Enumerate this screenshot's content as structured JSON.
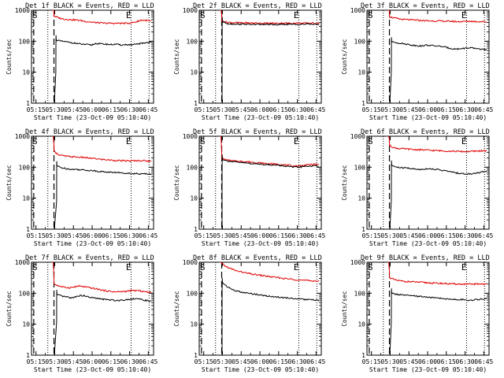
{
  "chart_data": [
    {
      "type": "line",
      "title": "Det 1f BLACK = Events, RED = LLD",
      "xlabel": "Start Time (23-Oct-09 05:10:40)",
      "ylabel": "Counts/sec",
      "yscale": "log",
      "ylim": [
        1,
        1000
      ],
      "xlim": [
        5.19,
        6.82
      ],
      "x_ticks": [
        "05:15",
        "05:30",
        "05:45",
        "06:00",
        "06:15",
        "06:30",
        "06:45"
      ],
      "y_ticks": [
        "1",
        "10",
        "100",
        "1000"
      ],
      "markers": [
        "S",
        "E"
      ],
      "grid": false,
      "black_start": 5.52,
      "black_spike_min": 10,
      "black": [
        110,
        100,
        95,
        90,
        85,
        80,
        78,
        75,
        85,
        82,
        80,
        78,
        80,
        75,
        78,
        75,
        80,
        85,
        90,
        92
      ],
      "red": [
        650,
        560,
        520,
        500,
        490,
        470,
        440,
        420,
        400,
        390,
        380,
        380,
        380,
        380,
        380,
        390,
        420,
        480,
        470,
        440
      ],
      "series": [
        {
          "name": "BLACK",
          "color": "#000000"
        },
        {
          "name": "RED",
          "color": "#e00000"
        }
      ]
    },
    {
      "type": "line",
      "title": "Det 2f BLACK = Events, RED = LLD",
      "xlabel": "Start Time (23-Oct-09 05:10:40)",
      "ylabel": "Counts/sec",
      "yscale": "log",
      "ylim": [
        1,
        1000
      ],
      "xlim": [
        5.19,
        6.82
      ],
      "x_ticks": [
        "05:15",
        "05:30",
        "05:45",
        "06:00",
        "06:15",
        "06:30",
        "06:45"
      ],
      "y_ticks": [
        "1",
        "10",
        "100",
        "1000"
      ],
      "markers": [
        "S",
        "E"
      ],
      "grid": false,
      "black_start": 5.5,
      "black_spike_min": 10,
      "black": [
        430,
        370,
        360,
        355,
        355,
        350,
        345,
        350,
        345,
        350,
        340,
        345,
        350,
        355,
        345,
        350,
        355,
        360,
        350,
        345
      ],
      "red": [
        460,
        410,
        400,
        395,
        390,
        390,
        385,
        385,
        380,
        380,
        380,
        380,
        385,
        380,
        380,
        385,
        380,
        385,
        380,
        380
      ],
      "series": [
        {
          "name": "BLACK",
          "color": "#000000"
        },
        {
          "name": "RED",
          "color": "#e00000"
        }
      ]
    },
    {
      "type": "line",
      "title": "Det 3f BLACK = Events, RED = LLD",
      "xlabel": "Start Time (23-Oct-09 05:10:40)",
      "ylabel": "Counts/sec",
      "yscale": "log",
      "ylim": [
        1,
        1000
      ],
      "xlim": [
        5.19,
        6.82
      ],
      "x_ticks": [
        "05:15",
        "05:30",
        "05:45",
        "06:00",
        "06:15",
        "06:30",
        "06:45"
      ],
      "y_ticks": [
        "1",
        "10",
        "100",
        "1000"
      ],
      "markers": [
        "S",
        "E"
      ],
      "grid": false,
      "black_start": 5.52,
      "black_spike_min": 10,
      "black": [
        95,
        90,
        85,
        80,
        75,
        72,
        70,
        75,
        72,
        70,
        68,
        62,
        58,
        56,
        58,
        60,
        60,
        58,
        55,
        52
      ],
      "red": [
        620,
        560,
        520,
        500,
        490,
        480,
        470,
        460,
        450,
        450,
        450,
        440,
        440,
        430,
        430,
        440,
        440,
        430,
        430,
        420
      ],
      "series": [
        {
          "name": "BLACK",
          "color": "#000000"
        },
        {
          "name": "RED",
          "color": "#e00000"
        }
      ]
    },
    {
      "type": "line",
      "title": "Det 4f BLACK = Events, RED = LLD",
      "xlabel": "Start Time (23-Oct-09 05:10:40)",
      "ylabel": "Counts/sec",
      "yscale": "log",
      "ylim": [
        1,
        1000
      ],
      "xlim": [
        5.19,
        6.82
      ],
      "x_ticks": [
        "05:15",
        "05:30",
        "05:45",
        "06:00",
        "06:15",
        "06:30",
        "06:45"
      ],
      "y_ticks": [
        "1",
        "10",
        "100",
        "1000"
      ],
      "markers": [
        "S",
        "E"
      ],
      "grid": false,
      "black_start": 5.53,
      "black_spike_min": 8,
      "black": [
        110,
        95,
        90,
        85,
        85,
        82,
        80,
        78,
        75,
        72,
        70,
        68,
        68,
        65,
        65,
        62,
        62,
        60,
        62,
        60
      ],
      "red": [
        330,
        250,
        230,
        220,
        215,
        210,
        205,
        195,
        190,
        180,
        175,
        170,
        165,
        162,
        160,
        160,
        162,
        165,
        160,
        155
      ],
      "series": [
        {
          "name": "BLACK",
          "color": "#000000"
        },
        {
          "name": "RED",
          "color": "#e00000"
        }
      ]
    },
    {
      "type": "line",
      "title": "Det 5f BLACK = Events, RED = LLD",
      "xlabel": "Start Time (23-Oct-09 05:10:40)",
      "ylabel": "Counts/sec",
      "yscale": "log",
      "ylim": [
        1,
        1000
      ],
      "xlim": [
        5.19,
        6.82
      ],
      "x_ticks": [
        "05:15",
        "05:30",
        "05:45",
        "06:00",
        "06:15",
        "06:30",
        "06:45"
      ],
      "y_ticks": [
        "1",
        "10",
        "100",
        "1000"
      ],
      "markers": [
        "S",
        "E"
      ],
      "grid": false,
      "black_start": 5.5,
      "black_spike_min": 60,
      "black": [
        180,
        160,
        150,
        145,
        140,
        135,
        130,
        128,
        125,
        120,
        118,
        115,
        110,
        105,
        100,
        100,
        105,
        108,
        110,
        105
      ],
      "red": [
        190,
        170,
        160,
        155,
        155,
        150,
        145,
        140,
        135,
        130,
        128,
        125,
        120,
        115,
        110,
        110,
        115,
        120,
        125,
        120
      ],
      "series": [
        {
          "name": "BLACK",
          "color": "#000000"
        },
        {
          "name": "RED",
          "color": "#e00000"
        }
      ]
    },
    {
      "type": "line",
      "title": "Det 6f BLACK = Events, RED = LLD",
      "xlabel": "Start Time (23-Oct-09 05:10:40)",
      "ylabel": "Counts/sec",
      "yscale": "log",
      "ylim": [
        1,
        1000
      ],
      "xlim": [
        5.19,
        6.82
      ],
      "x_ticks": [
        "05:15",
        "05:30",
        "05:45",
        "06:00",
        "06:15",
        "06:30",
        "06:45"
      ],
      "y_ticks": [
        "1",
        "10",
        "100",
        "1000"
      ],
      "markers": [
        "S",
        "E"
      ],
      "grid": false,
      "black_start": 5.52,
      "black_spike_min": 8,
      "black": [
        115,
        100,
        95,
        95,
        90,
        85,
        85,
        90,
        88,
        85,
        80,
        75,
        70,
        65,
        62,
        60,
        62,
        65,
        70,
        72
      ],
      "red": [
        500,
        420,
        400,
        390,
        380,
        370,
        365,
        360,
        350,
        345,
        340,
        335,
        330,
        325,
        320,
        320,
        325,
        330,
        340,
        330
      ],
      "series": [
        {
          "name": "BLACK",
          "color": "#000000"
        },
        {
          "name": "RED",
          "color": "#e00000"
        }
      ]
    },
    {
      "type": "line",
      "title": "Det 7f BLACK = Events, RED = LLD",
      "xlabel": "Start Time (23-Oct-09 05:10:40)",
      "ylabel": "Counts/sec",
      "yscale": "log",
      "ylim": [
        1,
        1000
      ],
      "xlim": [
        5.19,
        6.82
      ],
      "x_ticks": [
        "05:15",
        "05:30",
        "05:45",
        "06:00",
        "06:15",
        "06:30",
        "06:45"
      ],
      "y_ticks": [
        "1",
        "10",
        "100",
        "1000"
      ],
      "markers": [
        "S",
        "E"
      ],
      "grid": false,
      "black_start": 5.53,
      "black_spike_min": 12,
      "black": [
        90,
        80,
        75,
        70,
        80,
        85,
        78,
        72,
        68,
        65,
        62,
        60,
        58,
        60,
        62,
        65,
        68,
        62,
        58,
        55
      ],
      "red": [
        200,
        170,
        155,
        150,
        160,
        170,
        160,
        150,
        140,
        130,
        120,
        115,
        110,
        112,
        115,
        120,
        122,
        118,
        110,
        105
      ],
      "series": [
        {
          "name": "BLACK",
          "color": "#000000"
        },
        {
          "name": "RED",
          "color": "#e00000"
        }
      ]
    },
    {
      "type": "line",
      "title": "Det 8f BLACK = Events, RED = LLD",
      "xlabel": "Start Time (23-Oct-09 05:10:40)",
      "ylabel": "Counts/sec",
      "yscale": "log",
      "ylim": [
        1,
        1000
      ],
      "xlim": [
        5.19,
        6.82
      ],
      "x_ticks": [
        "05:15",
        "05:30",
        "05:45",
        "06:00",
        "06:15",
        "06:30",
        "06:45"
      ],
      "y_ticks": [
        "1",
        "10",
        "100",
        "1000"
      ],
      "markers": [
        "S",
        "E"
      ],
      "grid": false,
      "black_start": 5.5,
      "black_spike_min": 50,
      "black": [
        220,
        160,
        130,
        115,
        105,
        100,
        95,
        90,
        85,
        80,
        78,
        75,
        72,
        70,
        68,
        65,
        63,
        62,
        60,
        58
      ],
      "red": [
        900,
        700,
        600,
        520,
        480,
        440,
        410,
        390,
        370,
        350,
        330,
        320,
        300,
        290,
        280,
        270,
        260,
        255,
        250,
        245
      ],
      "series": [
        {
          "name": "BLACK",
          "color": "#000000"
        },
        {
          "name": "RED",
          "color": "#e00000"
        }
      ]
    },
    {
      "type": "line",
      "title": "Det 9f BLACK = Events, RED = LLD",
      "xlabel": "Start Time (23-Oct-09 05:10:40)",
      "ylabel": "Counts/sec",
      "yscale": "log",
      "ylim": [
        1,
        1000
      ],
      "xlim": [
        5.19,
        6.82
      ],
      "x_ticks": [
        "05:15",
        "05:30",
        "05:45",
        "06:00",
        "06:15",
        "06:30",
        "06:45"
      ],
      "y_ticks": [
        "1",
        "10",
        "100",
        "1000"
      ],
      "markers": [
        "S",
        "E"
      ],
      "grid": false,
      "black_start": 5.52,
      "black_spike_min": 12,
      "black": [
        100,
        92,
        88,
        85,
        82,
        80,
        78,
        75,
        72,
        70,
        68,
        65,
        65,
        62,
        62,
        60,
        60,
        62,
        65,
        68
      ],
      "red": [
        320,
        270,
        250,
        240,
        235,
        230,
        225,
        220,
        215,
        210,
        208,
        205,
        200,
        198,
        196,
        195,
        195,
        198,
        200,
        195
      ],
      "series": [
        {
          "name": "BLACK",
          "color": "#000000"
        },
        {
          "name": "RED",
          "color": "#e00000"
        }
      ]
    }
  ]
}
